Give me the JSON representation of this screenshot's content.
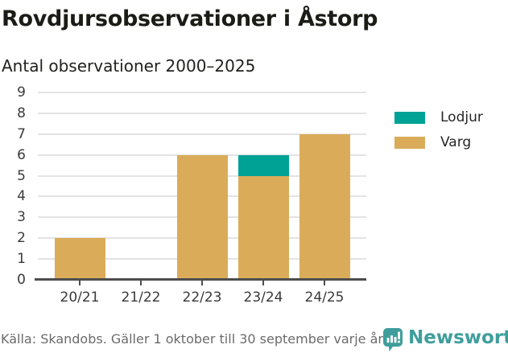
{
  "title": "Rovdjursobservationer i Åstorp",
  "subtitle": "Antal observationer 2000–2025",
  "footer": {
    "source": "Källa: Skandobs. Gäller 1 oktober till 30 september varje år.",
    "brand": "Newsworthy"
  },
  "colors": {
    "lodjur": "#00a296",
    "varg": "#daac5a",
    "grid": "#e3e3e3",
    "axis": "#4d4d4d",
    "tick_label": "#3a3a3a",
    "footer_text": "#6b6b6b",
    "brand_teal": "#3f9e9c"
  },
  "chart_data": {
    "type": "bar",
    "stacked": true,
    "title": "Rovdjursobservationer i Åstorp",
    "subtitle": "Antal observationer 2000–2025",
    "categories": [
      "20/21",
      "21/22",
      "22/23",
      "23/24",
      "24/25"
    ],
    "series": [
      {
        "name": "Varg",
        "color": "#daac5a",
        "values": [
          2,
          0,
          6,
          5,
          7
        ]
      },
      {
        "name": "Lodjur",
        "color": "#00a296",
        "values": [
          0,
          0,
          0,
          1,
          0
        ]
      }
    ],
    "totals": [
      2,
      0,
      6,
      6,
      7
    ],
    "legend": [
      {
        "label": "Lodjur",
        "color": "#00a296"
      },
      {
        "label": "Varg",
        "color": "#daac5a"
      }
    ],
    "xlabel": "",
    "ylabel": "",
    "ylim": [
      0,
      9
    ],
    "ytick_step": 1,
    "yticks": [
      0,
      1,
      2,
      3,
      4,
      5,
      6,
      7,
      8,
      9
    ],
    "grid": true,
    "legend_position": "right"
  }
}
